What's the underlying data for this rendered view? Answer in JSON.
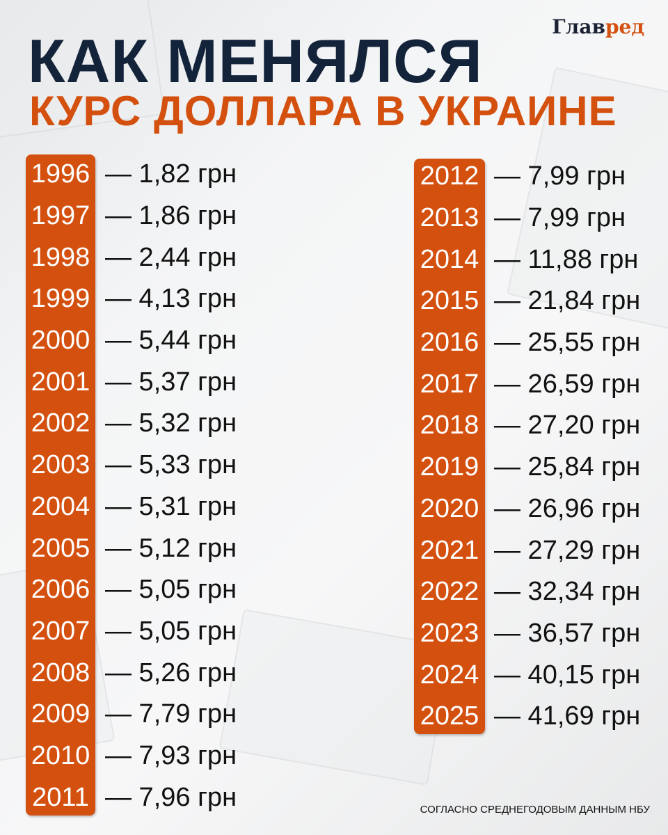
{
  "logo": {
    "part1": "Глав",
    "part2": "ред"
  },
  "title": {
    "line1": "КАК МЕНЯЛСЯ",
    "line2": "КУРС ДОЛЛАРА В УКРАИНЕ"
  },
  "accent_color": "#d4500f",
  "title_color": "#13233a",
  "unit": "грн",
  "left_column": [
    {
      "year": "1996",
      "value": "— 1,82 грн"
    },
    {
      "year": "1997",
      "value": "— 1,86 грн"
    },
    {
      "year": "1998",
      "value": "— 2,44 грн"
    },
    {
      "year": "1999",
      "value": "— 4,13 грн"
    },
    {
      "year": "2000",
      "value": "— 5,44 грн"
    },
    {
      "year": "2001",
      "value": "— 5,37 грн"
    },
    {
      "year": "2002",
      "value": "— 5,32 грн"
    },
    {
      "year": "2003",
      "value": "— 5,33 грн"
    },
    {
      "year": "2004",
      "value": "— 5,31 грн"
    },
    {
      "year": "2005",
      "value": "— 5,12 грн"
    },
    {
      "year": "2006",
      "value": "— 5,05 грн"
    },
    {
      "year": "2007",
      "value": "— 5,05 грн"
    },
    {
      "year": "2008",
      "value": "— 5,26 грн"
    },
    {
      "year": "2009",
      "value": "— 7,79 грн"
    },
    {
      "year": "2010",
      "value": "— 7,93 грн"
    },
    {
      "year": "2011",
      "value": "— 7,96 грн"
    }
  ],
  "right_column": [
    {
      "year": "2012",
      "value": "— 7,99 грн"
    },
    {
      "year": "2013",
      "value": "— 7,99 грн"
    },
    {
      "year": "2014",
      "value": "— 11,88 грн"
    },
    {
      "year": "2015",
      "value": "— 21,84 грн"
    },
    {
      "year": "2016",
      "value": "— 25,55 грн"
    },
    {
      "year": "2017",
      "value": "— 26,59 грн"
    },
    {
      "year": "2018",
      "value": "— 27,20 грн"
    },
    {
      "year": "2019",
      "value": "— 25,84 грн"
    },
    {
      "year": "2020",
      "value": "— 26,96 грн"
    },
    {
      "year": "2021",
      "value": "— 27,29 грн"
    },
    {
      "year": "2022",
      "value": "— 32,34 грн"
    },
    {
      "year": "2023",
      "value": "— 36,57 грн"
    },
    {
      "year": "2024",
      "value": "— 40,15 грн"
    },
    {
      "year": "2025",
      "value": "— 41,69 грн"
    }
  ],
  "footer": "СОГЛАСНО СРЕДНЕГОДОВЫМ ДАННЫМ НБУ"
}
